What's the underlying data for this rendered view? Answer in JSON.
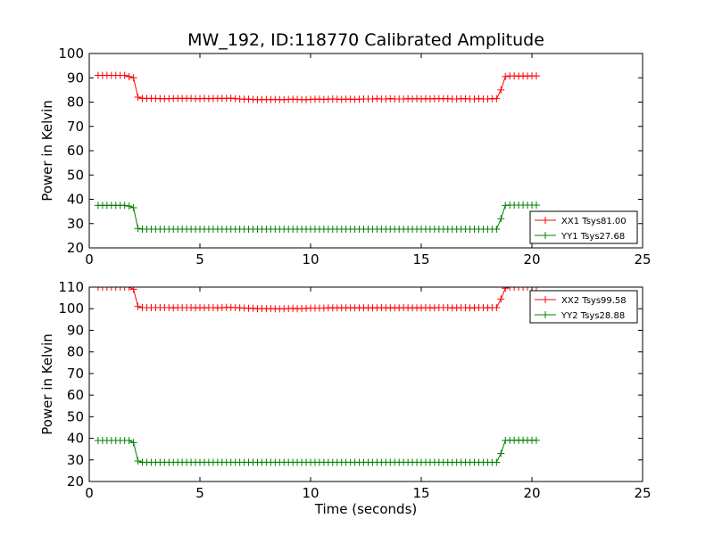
{
  "title": "MW_192, ID:118770 Calibrated Amplitude",
  "colors": {
    "red": "#ff0000",
    "green": "#008000"
  },
  "chart_data": [
    {
      "type": "line",
      "title": "MW_192, ID:118770 Calibrated Amplitude",
      "xlabel": "",
      "ylabel": "Power in Kelvin",
      "xlim": [
        0,
        25
      ],
      "ylim": [
        20,
        100
      ],
      "xticks": [
        "0",
        "5",
        "10",
        "15",
        "20",
        "25"
      ],
      "yticks": [
        "20",
        "30",
        "40",
        "50",
        "60",
        "70",
        "80",
        "90",
        "100"
      ],
      "grid": false,
      "legend_position": "lower-right",
      "x": [
        0.4,
        0.6,
        0.8,
        1.0,
        1.2,
        1.4,
        1.6,
        1.8,
        2.0,
        2.2,
        2.4,
        2.6,
        2.8,
        3.0,
        3.2,
        3.4,
        3.6,
        3.8,
        4.0,
        4.2,
        4.4,
        4.6,
        4.8,
        5.0,
        5.2,
        5.4,
        5.6,
        5.8,
        6.0,
        6.2,
        6.4,
        6.6,
        6.8,
        7.0,
        7.2,
        7.4,
        7.6,
        7.8,
        8.0,
        8.2,
        8.4,
        8.6,
        8.8,
        9.0,
        9.2,
        9.4,
        9.6,
        9.8,
        10.0,
        10.2,
        10.4,
        10.6,
        10.8,
        11.0,
        11.2,
        11.4,
        11.6,
        11.8,
        12.0,
        12.2,
        12.4,
        12.6,
        12.8,
        13.0,
        13.2,
        13.4,
        13.6,
        13.8,
        14.0,
        14.2,
        14.4,
        14.6,
        14.8,
        15.0,
        15.2,
        15.4,
        15.6,
        15.8,
        16.0,
        16.2,
        16.4,
        16.6,
        16.8,
        17.0,
        17.2,
        17.4,
        17.6,
        17.8,
        18.0,
        18.2,
        18.4,
        18.6,
        18.8,
        19.0,
        19.2,
        19.4,
        19.6,
        19.8,
        20.0,
        20.2
      ],
      "series": [
        {
          "name": "XX1 Tsys81.00",
          "color": "#ff0000",
          "values": [
            91,
            91,
            91,
            91,
            91,
            91,
            91,
            90.5,
            90,
            82,
            81.5,
            81.5,
            81.5,
            81.5,
            81.4,
            81.4,
            81.4,
            81.5,
            81.5,
            81.5,
            81.5,
            81.5,
            81.4,
            81.4,
            81.5,
            81.4,
            81.5,
            81.5,
            81.5,
            81.5,
            81.6,
            81.4,
            81.3,
            81.2,
            81.2,
            81.1,
            81.0,
            81.0,
            81.1,
            81.0,
            81.1,
            81.0,
            81.0,
            81.1,
            81.2,
            81.1,
            81.0,
            81.0,
            81.1,
            81.2,
            81.2,
            81.1,
            81.2,
            81.3,
            81.2,
            81.1,
            81.2,
            81.2,
            81.1,
            81.2,
            81.3,
            81.3,
            81.3,
            81.4,
            81.3,
            81.3,
            81.4,
            81.3,
            81.3,
            81.3,
            81.4,
            81.3,
            81.4,
            81.3,
            81.4,
            81.3,
            81.4,
            81.4,
            81.4,
            81.4,
            81.3,
            81.3,
            81.4,
            81.4,
            81.3,
            81.3,
            81.4,
            81.3,
            81.3,
            81.4,
            81.4,
            85,
            90.5,
            90.8,
            90.8,
            90.7,
            90.8,
            90.7,
            90.8,
            90.8
          ]
        },
        {
          "name": "YY1 Tsys27.68",
          "color": "#008000",
          "values": [
            37.5,
            37.5,
            37.5,
            37.5,
            37.5,
            37.5,
            37.5,
            37.2,
            36.5,
            28,
            27.7,
            27.7,
            27.7,
            27.7,
            27.7,
            27.7,
            27.7,
            27.7,
            27.7,
            27.7,
            27.7,
            27.7,
            27.7,
            27.7,
            27.7,
            27.7,
            27.7,
            27.7,
            27.7,
            27.7,
            27.7,
            27.7,
            27.7,
            27.7,
            27.7,
            27.7,
            27.7,
            27.7,
            27.7,
            27.7,
            27.7,
            27.7,
            27.7,
            27.7,
            27.7,
            27.7,
            27.7,
            27.7,
            27.7,
            27.7,
            27.7,
            27.7,
            27.7,
            27.7,
            27.7,
            27.7,
            27.7,
            27.7,
            27.7,
            27.7,
            27.7,
            27.7,
            27.7,
            27.7,
            27.7,
            27.7,
            27.7,
            27.7,
            27.7,
            27.7,
            27.7,
            27.7,
            27.7,
            27.7,
            27.7,
            27.7,
            27.7,
            27.7,
            27.7,
            27.7,
            27.7,
            27.7,
            27.7,
            27.7,
            27.7,
            27.7,
            27.7,
            27.7,
            27.7,
            27.7,
            27.7,
            32,
            37.5,
            37.6,
            37.6,
            37.6,
            37.6,
            37.6,
            37.6,
            37.6
          ]
        }
      ]
    },
    {
      "type": "line",
      "title": "",
      "xlabel": "Time (seconds)",
      "ylabel": "Power in Kelvin",
      "xlim": [
        0,
        25
      ],
      "ylim": [
        20,
        110
      ],
      "xticks": [
        "0",
        "5",
        "10",
        "15",
        "20",
        "25"
      ],
      "yticks": [
        "20",
        "30",
        "40",
        "50",
        "60",
        "70",
        "80",
        "90",
        "100",
        "110"
      ],
      "grid": false,
      "legend_position": "upper-right",
      "x": [
        0.4,
        0.6,
        0.8,
        1.0,
        1.2,
        1.4,
        1.6,
        1.8,
        2.0,
        2.2,
        2.4,
        2.6,
        2.8,
        3.0,
        3.2,
        3.4,
        3.6,
        3.8,
        4.0,
        4.2,
        4.4,
        4.6,
        4.8,
        5.0,
        5.2,
        5.4,
        5.6,
        5.8,
        6.0,
        6.2,
        6.4,
        6.6,
        6.8,
        7.0,
        7.2,
        7.4,
        7.6,
        7.8,
        8.0,
        8.2,
        8.4,
        8.6,
        8.8,
        9.0,
        9.2,
        9.4,
        9.6,
        9.8,
        10.0,
        10.2,
        10.4,
        10.6,
        10.8,
        11.0,
        11.2,
        11.4,
        11.6,
        11.8,
        12.0,
        12.2,
        12.4,
        12.6,
        12.8,
        13.0,
        13.2,
        13.4,
        13.6,
        13.8,
        14.0,
        14.2,
        14.4,
        14.6,
        14.8,
        15.0,
        15.2,
        15.4,
        15.6,
        15.8,
        16.0,
        16.2,
        16.4,
        16.6,
        16.8,
        17.0,
        17.2,
        17.4,
        17.6,
        17.8,
        18.0,
        18.2,
        18.4,
        18.6,
        18.8,
        19.0,
        19.2,
        19.4,
        19.6,
        19.8,
        20.0,
        20.2
      ],
      "series": [
        {
          "name": "XX2 Tsys99.58",
          "color": "#ff0000",
          "values": [
            110,
            110,
            110,
            110,
            110,
            110,
            110,
            110,
            109,
            101,
            100.5,
            100.5,
            100.5,
            100.5,
            100.5,
            100.5,
            100.5,
            100.4,
            100.5,
            100.5,
            100.5,
            100.5,
            100.4,
            100.5,
            100.4,
            100.5,
            100.5,
            100.4,
            100.5,
            100.6,
            100.6,
            100.5,
            100.4,
            100.3,
            100.2,
            100.2,
            100.0,
            100.1,
            100.0,
            100.1,
            100.0,
            99.9,
            100.0,
            100.1,
            100.2,
            100.0,
            100.1,
            100.2,
            100.3,
            100.3,
            100.3,
            100.3,
            100.4,
            100.4,
            100.4,
            100.4,
            100.4,
            100.4,
            100.4,
            100.4,
            100.4,
            100.4,
            100.4,
            100.4,
            100.5,
            100.4,
            100.4,
            100.4,
            100.4,
            100.5,
            100.4,
            100.4,
            100.4,
            100.4,
            100.5,
            100.4,
            100.4,
            100.5,
            100.5,
            100.5,
            100.4,
            100.4,
            100.5,
            100.5,
            100.4,
            100.4,
            100.5,
            100.5,
            100.4,
            100.5,
            100.5,
            104.5,
            109.5,
            110,
            110,
            110,
            110,
            110,
            110,
            110
          ]
        },
        {
          "name": "YY2 Tsys28.88",
          "color": "#008000",
          "values": [
            39,
            39,
            39,
            39,
            39,
            39,
            39,
            39,
            38,
            29.5,
            28.9,
            28.9,
            28.9,
            28.9,
            28.9,
            28.9,
            28.9,
            28.9,
            28.9,
            28.9,
            28.9,
            28.9,
            28.9,
            28.9,
            28.9,
            28.9,
            28.9,
            28.9,
            28.9,
            28.9,
            28.9,
            28.9,
            28.9,
            28.9,
            28.9,
            28.9,
            28.9,
            28.9,
            28.9,
            28.9,
            28.9,
            28.9,
            28.9,
            28.9,
            28.9,
            28.9,
            28.9,
            28.9,
            28.9,
            28.9,
            28.9,
            28.9,
            28.9,
            28.9,
            28.9,
            28.9,
            28.9,
            28.9,
            28.9,
            28.9,
            28.9,
            28.9,
            28.9,
            28.9,
            28.9,
            28.9,
            28.9,
            28.9,
            28.9,
            28.9,
            28.9,
            28.9,
            28.9,
            28.9,
            28.9,
            28.9,
            28.9,
            28.9,
            28.9,
            28.9,
            28.9,
            28.9,
            28.9,
            28.9,
            28.9,
            28.9,
            28.9,
            28.9,
            28.9,
            28.9,
            28.9,
            33,
            39,
            39.1,
            39.1,
            39.1,
            39.1,
            39.1,
            39.1,
            39.1
          ]
        }
      ]
    }
  ]
}
